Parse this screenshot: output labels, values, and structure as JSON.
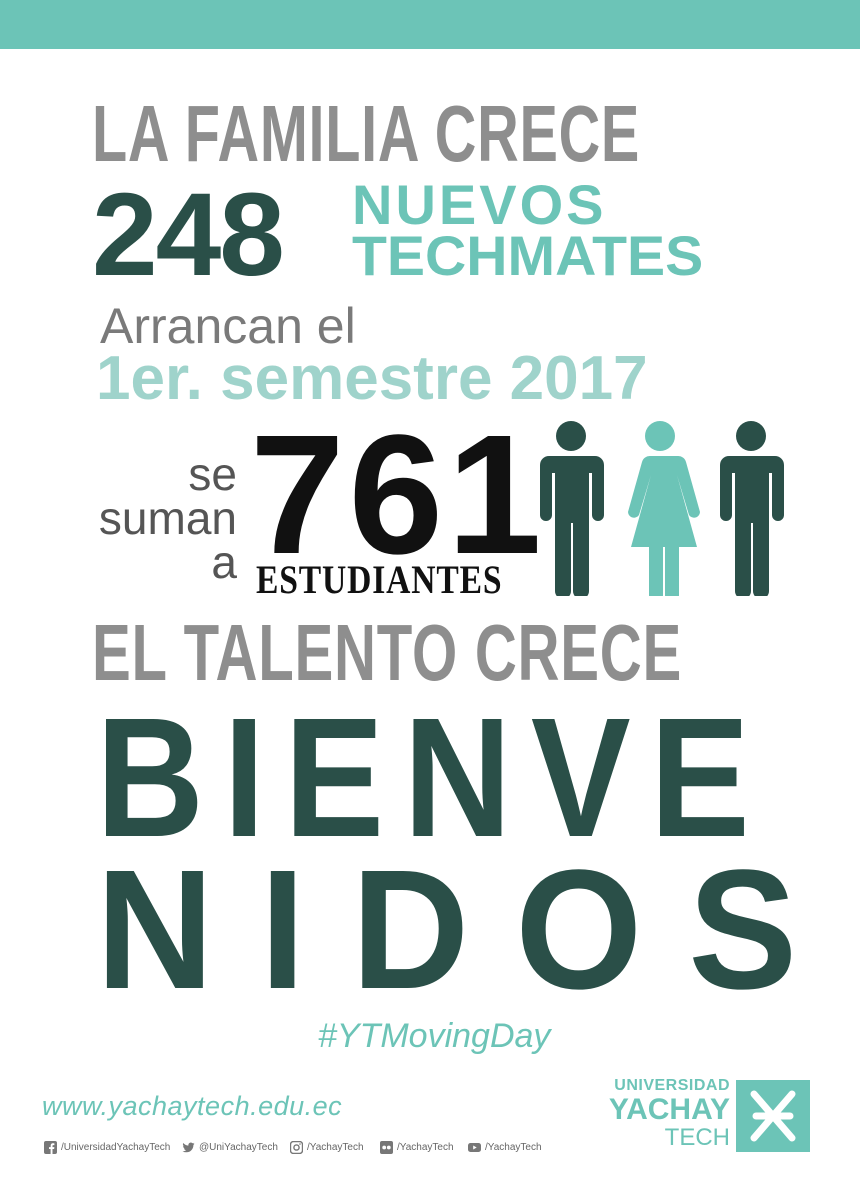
{
  "poster": {
    "line1": "LA FAMILIA CRECE",
    "count_new": "248",
    "nuevos": "NUEVOS",
    "techmates": "TECHMATES",
    "arrancan": "Arrancan el",
    "semestre": "1er. semestre 2017",
    "se": "se",
    "suman": "suman",
    "a": "a",
    "count_total": "761",
    "estudiantes": "ESTUDIANTES",
    "talento": "EL TALENTO CRECE",
    "bienve": "BIENVE",
    "nidos": "NIDOS",
    "hashtag": "#YTMovingDay",
    "website": "www.yachaytech.edu.ec"
  },
  "social": [
    {
      "icon": "facebook-icon",
      "label": "/UniversidadYachayTech"
    },
    {
      "icon": "twitter-icon",
      "label": "@UniYachayTech"
    },
    {
      "icon": "instagram-icon",
      "label": "/YachayTech"
    },
    {
      "icon": "flickr-icon",
      "label": "/YachayTech"
    },
    {
      "icon": "youtube-icon",
      "label": "/YachayTech"
    }
  ],
  "logo": {
    "line1": "UNIVERSIDAD",
    "line2": "YACHAY",
    "line3": "TECH"
  },
  "colors": {
    "teal": "#6cc4b7",
    "dark_green": "#2a4f48",
    "grey": "#8e8e8e",
    "light_teal": "#9fd3cb"
  }
}
